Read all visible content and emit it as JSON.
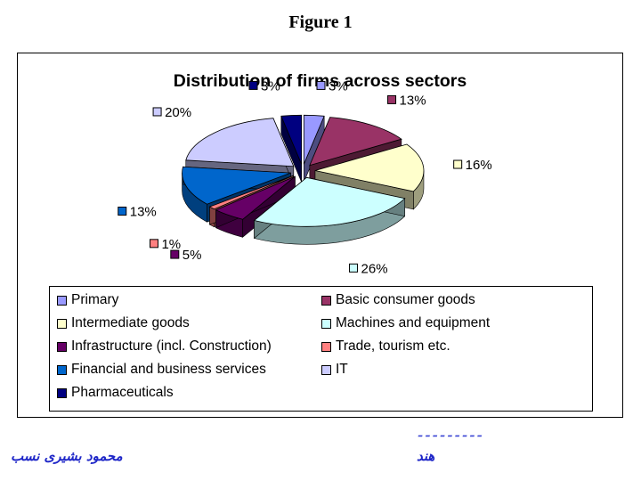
{
  "figure_title": "Figure 1",
  "chart_data": {
    "type": "pie",
    "title": "Distribution of firms across sectors",
    "unit": "%",
    "slices": [
      {
        "name": "Primary",
        "value": 3,
        "label": "3%",
        "color": "#9999ff"
      },
      {
        "name": "Basic consumer goods",
        "value": 13,
        "label": "13%",
        "color": "#993366"
      },
      {
        "name": "Intermediate goods",
        "value": 16,
        "label": "16%",
        "color": "#ffffcc"
      },
      {
        "name": "Machines and equipment",
        "value": 26,
        "label": "26%",
        "color": "#ccffff"
      },
      {
        "name": "Infrastructure (incl. Construction)",
        "value": 5,
        "label": "5%",
        "color": "#660066"
      },
      {
        "name": "Trade, tourism etc.",
        "value": 1,
        "label": "1%",
        "color": "#ff8080"
      },
      {
        "name": "Financial and business services",
        "value": 13,
        "label": "13%",
        "color": "#0066cc"
      },
      {
        "name": "IT",
        "value": 20,
        "label": "20%",
        "color": "#ccccff"
      },
      {
        "name": "Pharmaceuticals",
        "value": 3,
        "label": "3%",
        "color": "#000080"
      }
    ],
    "legend_placement": "bottom",
    "style": "3d-exploded"
  },
  "footer": {
    "author": "محمود بشیری نسب",
    "right_text": "هند"
  }
}
